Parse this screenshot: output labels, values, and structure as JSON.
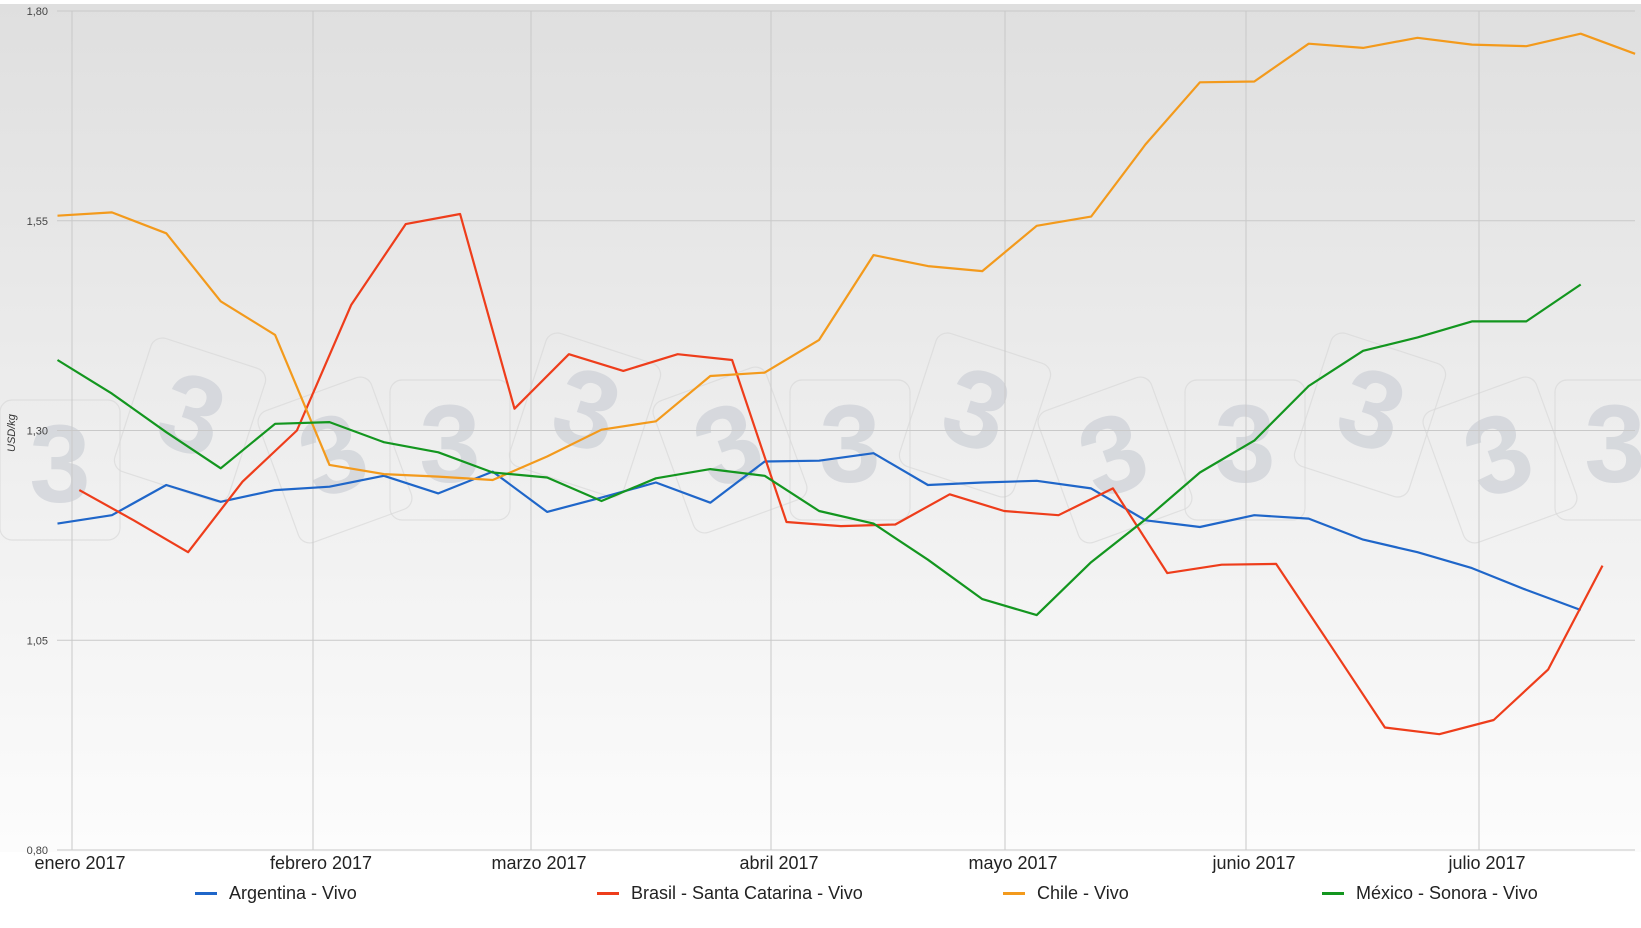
{
  "chart_data": {
    "type": "line",
    "title": "",
    "xlabel": "",
    "ylabel": "USD/kg",
    "ylim": [
      0.8,
      1.8
    ],
    "y_ticks": [
      "0,80",
      "1,05",
      "1,30",
      "1,55",
      "1,80"
    ],
    "y_tick_values": [
      0.8,
      1.05,
      1.3,
      1.55,
      1.8
    ],
    "x_tick_labels": [
      "enero 2017",
      "febrero 2017",
      "marzo 2017",
      "abril 2017",
      "mayo 2017",
      "junio 2017",
      "julio 2017"
    ],
    "grid": true,
    "legend_position": "bottom",
    "x_index_note": "weekly observations; index 0 ≈ first week of enero 2017",
    "series": [
      {
        "name": "Argentina - Vivo",
        "color": "#1f66c9",
        "start_index": 0,
        "values": [
          1.189,
          1.199,
          1.235,
          1.215,
          1.229,
          1.233,
          1.246,
          1.225,
          1.251,
          1.203,
          1.22,
          1.238,
          1.214,
          1.263,
          1.264,
          1.273,
          1.235,
          1.238,
          1.24,
          1.231,
          1.193,
          1.185,
          1.199,
          1.195,
          1.17,
          1.155,
          1.136,
          1.11,
          1.086
        ]
      },
      {
        "name": "Brasil - Santa Catarina - Vivo",
        "color": "#ee3d1b",
        "start_index": 0.4,
        "values": [
          1.229,
          1.193,
          1.155,
          1.239,
          1.3,
          1.45,
          1.546,
          1.558,
          1.326,
          1.391,
          1.371,
          1.391,
          1.384,
          1.191,
          1.186,
          1.188,
          1.224,
          1.204,
          1.199,
          1.231,
          1.13,
          1.14,
          1.141,
          1.044,
          0.946,
          0.938,
          0.955,
          1.015,
          1.139
        ]
      },
      {
        "name": "Chile - Vivo",
        "color": "#f39a1c",
        "start_index": 0,
        "values": [
          1.556,
          1.56,
          1.535,
          1.454,
          1.414,
          1.259,
          1.248,
          1.245,
          1.241,
          1.269,
          1.301,
          1.311,
          1.365,
          1.369,
          1.408,
          1.509,
          1.496,
          1.49,
          1.544,
          1.555,
          1.641,
          1.715,
          1.716,
          1.761,
          1.756,
          1.768,
          1.76,
          1.758,
          1.773,
          1.749
        ]
      },
      {
        "name": "México - Sonora - Vivo",
        "color": "#13961f",
        "start_index": 0,
        "values": [
          1.384,
          1.344,
          1.298,
          1.255,
          1.308,
          1.31,
          1.286,
          1.274,
          1.25,
          1.244,
          1.216,
          1.243,
          1.254,
          1.246,
          1.204,
          1.189,
          1.146,
          1.099,
          1.08,
          1.143,
          1.194,
          1.25,
          1.288,
          1.353,
          1.395,
          1.411,
          1.43,
          1.43,
          1.474
        ]
      }
    ]
  },
  "axis": {
    "y_title": "USD/kg",
    "y_labels": [
      "1,80",
      "1,55",
      "1,30",
      "1,05",
      "0,80"
    ],
    "x_labels": [
      "enero 2017",
      "febrero 2017",
      "marzo 2017",
      "abril 2017",
      "mayo 2017",
      "junio 2017",
      "julio 2017"
    ]
  },
  "legend": {
    "items": [
      {
        "label": "Argentina - Vivo",
        "color": "#1f66c9"
      },
      {
        "label": "Brasil - Santa Catarina - Vivo",
        "color": "#ee3d1b"
      },
      {
        "label": "Chile - Vivo",
        "color": "#f39a1c"
      },
      {
        "label": "México - Sonora - Vivo",
        "color": "#13961f"
      }
    ]
  },
  "watermark": {
    "glyph": "3"
  }
}
